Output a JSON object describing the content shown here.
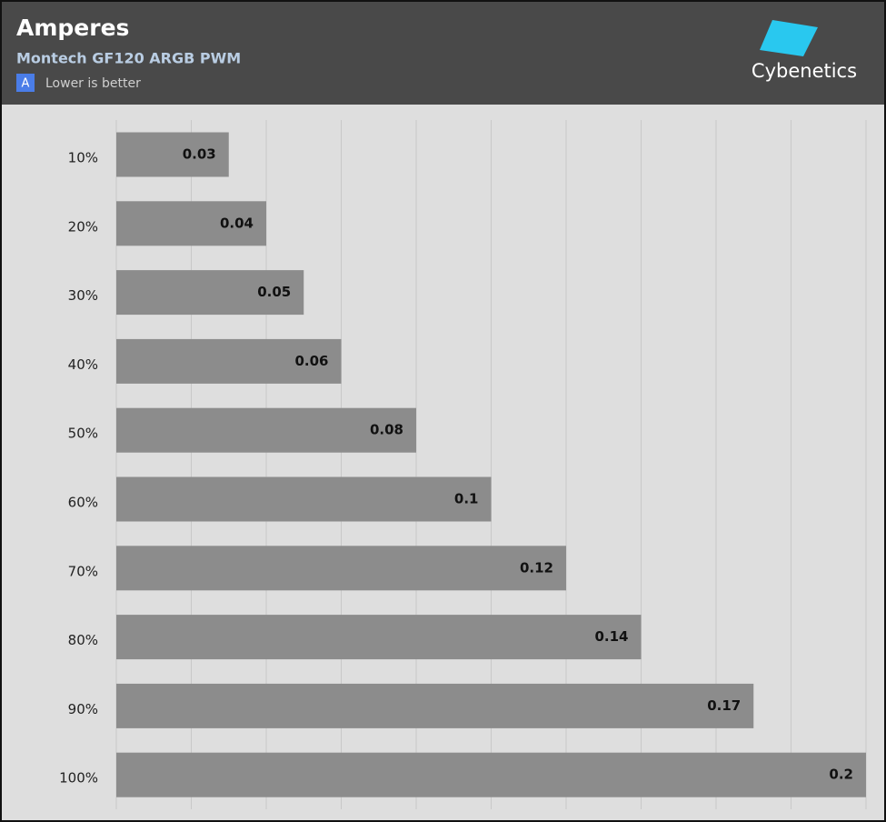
{
  "chart_data": {
    "type": "barh",
    "title": "Amperes",
    "subtitle": "Montech GF120 ARGB PWM",
    "badge": "A",
    "note": "Lower is better",
    "brand": "Cybenetics",
    "categories": [
      "10%",
      "20%",
      "30%",
      "40%",
      "50%",
      "60%",
      "70%",
      "80%",
      "90%",
      "100%"
    ],
    "values": [
      0.03,
      0.04,
      0.05,
      0.06,
      0.08,
      0.1,
      0.12,
      0.14,
      0.17,
      0.2
    ],
    "color": "#8c8c8c",
    "xlim": [
      0,
      0.2
    ],
    "xticks": [
      0,
      0.02,
      0.04,
      0.06,
      0.08,
      0.1,
      0.12,
      0.14,
      0.16,
      0.18,
      0.2
    ],
    "grid": true
  }
}
